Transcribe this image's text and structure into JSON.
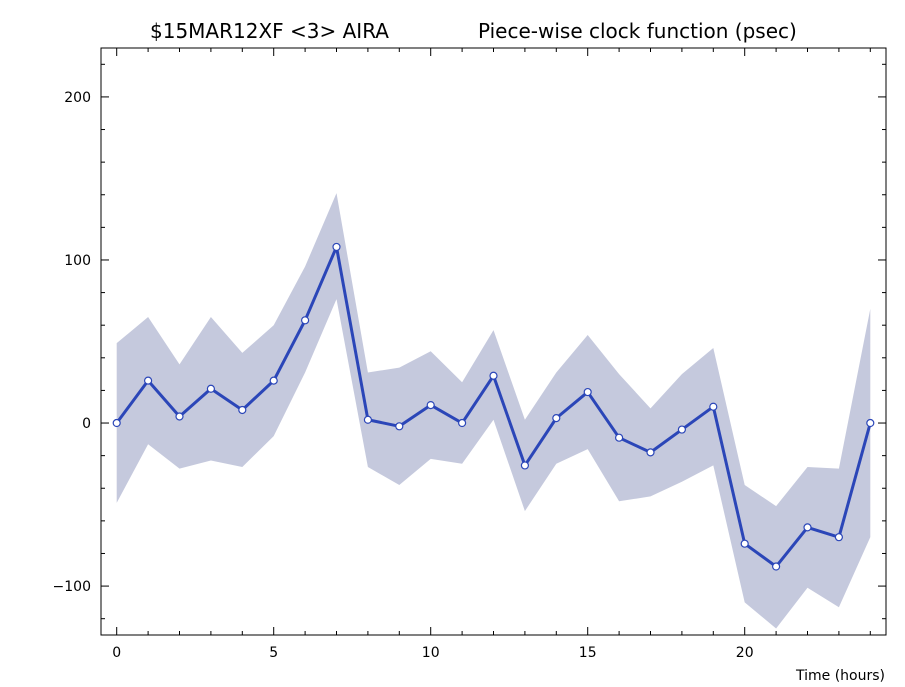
{
  "chart_data": {
    "type": "line",
    "title_left": "$15MAR12XF <3>  AIRA",
    "title_right": "Piece-wise clock function (psec)",
    "xlabel": "Time (hours)",
    "ylabel": "",
    "xlim": [
      -0.5,
      24.5
    ],
    "ylim": [
      -130,
      230
    ],
    "x_ticks": [
      0,
      5,
      10,
      15,
      20
    ],
    "x_tick_labels": [
      "0",
      "5",
      "10",
      "15",
      "20"
    ],
    "y_ticks": [
      -100,
      0,
      100,
      200
    ],
    "y_tick_labels": [
      "−100",
      "0",
      "100",
      "200"
    ],
    "x": [
      0,
      1,
      2,
      3,
      4,
      5,
      6,
      7,
      8,
      9,
      10,
      11,
      12,
      13,
      14,
      15,
      16,
      17,
      18,
      19,
      20,
      21,
      22,
      23,
      24
    ],
    "series": [
      {
        "values": [
          0,
          26,
          4,
          21,
          8,
          26,
          63,
          108,
          2,
          -2,
          11,
          0,
          29,
          -26,
          3,
          19,
          -9,
          -18,
          -4,
          10,
          -74,
          -88,
          -64,
          -70,
          0
        ],
        "band_upper": [
          49,
          65,
          36,
          65,
          43,
          60,
          96,
          141,
          31,
          34,
          44,
          25,
          57,
          2,
          31,
          54,
          30,
          9,
          30,
          46,
          -38,
          -51,
          -27,
          -28,
          70
        ],
        "band_lower": [
          -49,
          -13,
          -28,
          -23,
          -27,
          -8,
          31,
          76,
          -27,
          -38,
          -22,
          -25,
          2,
          -54,
          -25,
          -16,
          -48,
          -45,
          -36,
          -26,
          -110,
          -126,
          -101,
          -113,
          -70
        ]
      }
    ],
    "colors": {
      "line": "#2b46b8",
      "marker_fill": "#ffffff",
      "band": "#c5c9dd",
      "axes": "#000000"
    },
    "grid": false,
    "legend": "none"
  }
}
